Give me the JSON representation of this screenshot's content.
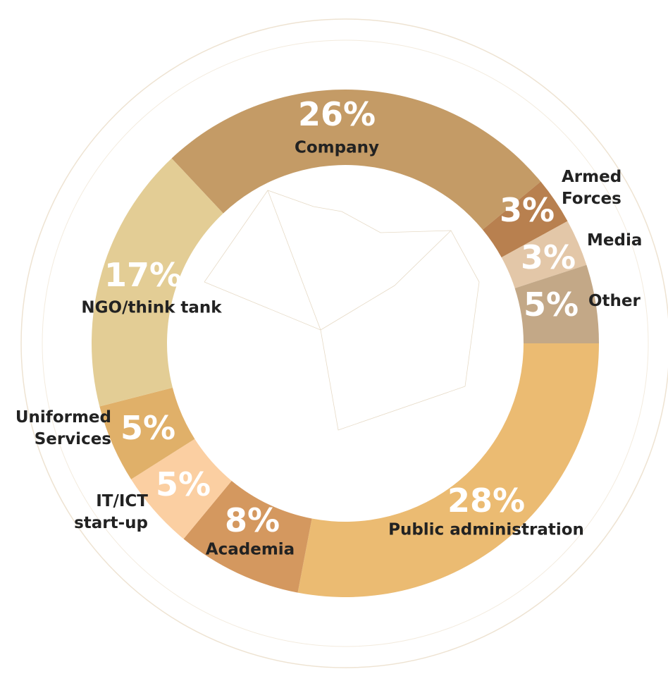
{
  "chart_data": {
    "type": "donut",
    "categories": [
      "Company",
      "Armed Forces",
      "Media",
      "Other",
      "Public administration",
      "Academia",
      "IT/ICT start-up",
      "Uniformed Services",
      "NGO/think tank"
    ],
    "values": [
      26,
      3,
      3,
      5,
      28,
      8,
      5,
      5,
      17
    ],
    "value_labels": [
      "26%",
      "3%",
      "3%",
      "5%",
      "28%",
      "8%",
      "5%",
      "5%",
      "17%"
    ],
    "colors": [
      "#c49b66",
      "#b8804f",
      "#e3c7a8",
      "#c3a887",
      "#ebbb72",
      "#d4985f",
      "#fbcfa2",
      "#e0b069",
      "#e3cd95"
    ]
  }
}
